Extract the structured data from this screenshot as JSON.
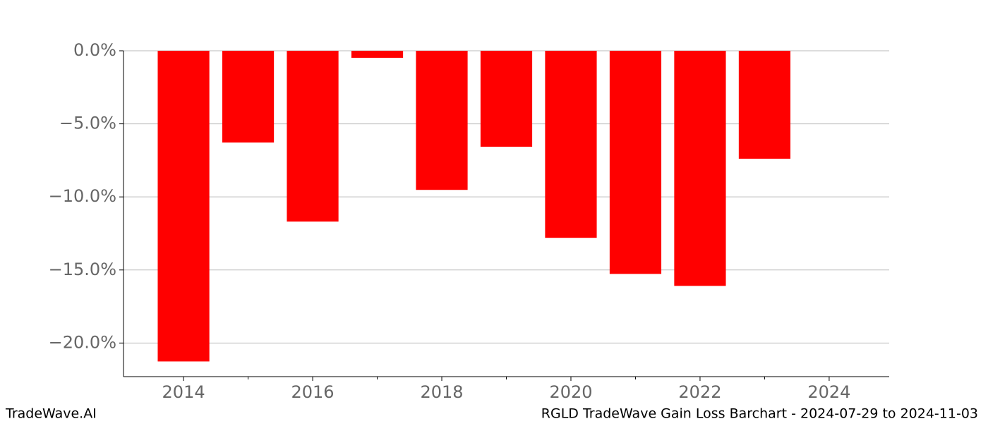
{
  "chart_data": {
    "type": "bar",
    "title": "RGLD TradeWave Gain Loss Barchart - 2024-07-29 to 2024-11-03",
    "brand": "TradeWave.AI",
    "x": [
      2014,
      2015,
      2016,
      2017,
      2018,
      2019,
      2020,
      2021,
      2022,
      2023
    ],
    "values": [
      -21.26,
      -6.28,
      -11.69,
      -0.48,
      -9.52,
      -6.57,
      -12.8,
      -15.27,
      -16.09,
      -7.39
    ],
    "color": "#ff0000",
    "bar_width": 0.8,
    "xlim": [
      2013.07,
      2024.93
    ],
    "xticks": [
      2014,
      2016,
      2018,
      2020,
      2022,
      2024
    ],
    "xminorticks": [
      2015,
      2017,
      2019,
      2021,
      2023
    ],
    "ylim": [
      -22.3,
      0
    ],
    "yticks": [
      {
        "value": 0,
        "label": "0.0%"
      },
      {
        "value": -5,
        "label": "−5.0%"
      },
      {
        "value": -10,
        "label": "−10.0%"
      },
      {
        "value": -15,
        "label": "−15.0%"
      },
      {
        "value": -20,
        "label": "−20.0%"
      }
    ],
    "grid": true
  }
}
